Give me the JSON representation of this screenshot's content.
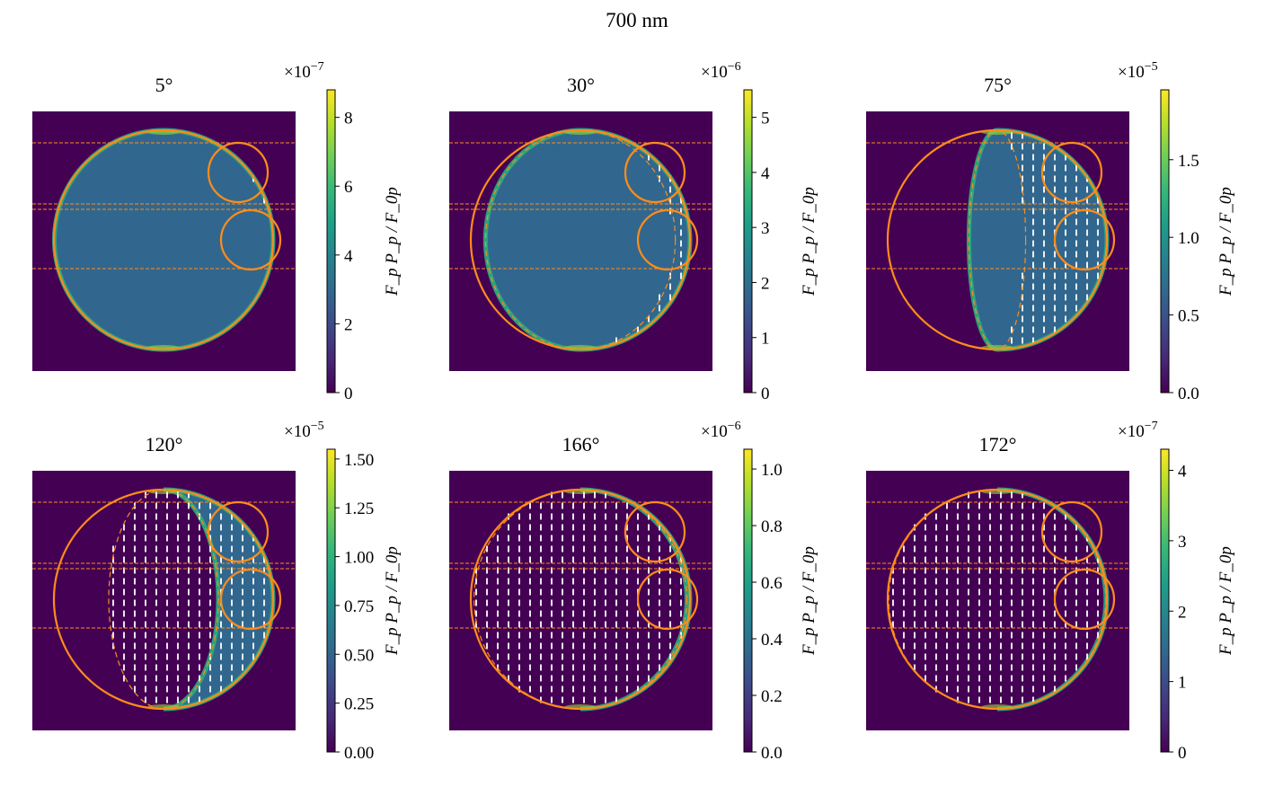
{
  "figure": {
    "suptitle": "700 nm"
  },
  "colors": {
    "planet_edge": "#ff8c1a",
    "vector": "#ffffff",
    "background": "#440154",
    "cmap": [
      "#440154",
      "#482878",
      "#3e4989",
      "#31688e",
      "#26828e",
      "#1f9e89",
      "#35b779",
      "#6ece58",
      "#b5de2b",
      "#fde725"
    ]
  },
  "colorbar_label": "F_p P_p / F_0p",
  "chart_data": [
    {
      "type": "heatmap",
      "title": "5°",
      "phase_angle_deg": 5,
      "colorbar": {
        "multiplier": "×10^−7",
        "multiplier_base": "×10",
        "multiplier_exp": "−7",
        "vmin": 0,
        "vmax": 8.8,
        "ticks": [
          0,
          2,
          4,
          6,
          8
        ],
        "tick_labels": [
          "0",
          "2",
          "4",
          "6",
          "8"
        ]
      }
    },
    {
      "type": "heatmap",
      "title": "30°",
      "phase_angle_deg": 30,
      "colorbar": {
        "multiplier": "×10^−6",
        "multiplier_base": "×10",
        "multiplier_exp": "−6",
        "vmin": 0,
        "vmax": 5.5,
        "ticks": [
          0,
          1,
          2,
          3,
          4,
          5
        ],
        "tick_labels": [
          "0",
          "1",
          "2",
          "3",
          "4",
          "5"
        ]
      }
    },
    {
      "type": "heatmap",
      "title": "75°",
      "phase_angle_deg": 75,
      "colorbar": {
        "multiplier": "×10^−5",
        "multiplier_base": "×10",
        "multiplier_exp": "−5",
        "vmin": 0,
        "vmax": 1.95,
        "ticks": [
          0,
          0.5,
          1.0,
          1.5
        ],
        "tick_labels": [
          "0.0",
          "0.5",
          "1.0",
          "1.5"
        ]
      }
    },
    {
      "type": "heatmap",
      "title": "120°",
      "phase_angle_deg": 120,
      "colorbar": {
        "multiplier": "×10^−5",
        "multiplier_base": "×10",
        "multiplier_exp": "−5",
        "vmin": 0,
        "vmax": 1.55,
        "ticks": [
          0,
          0.25,
          0.5,
          0.75,
          1.0,
          1.25,
          1.5
        ],
        "tick_labels": [
          "0.00",
          "0.25",
          "0.50",
          "0.75",
          "1.00",
          "1.25",
          "1.50"
        ]
      }
    },
    {
      "type": "heatmap",
      "title": "166°",
      "phase_angle_deg": 166,
      "colorbar": {
        "multiplier": "×10^−6",
        "multiplier_base": "×10",
        "multiplier_exp": "−6",
        "vmin": 0,
        "vmax": 1.07,
        "ticks": [
          0,
          0.2,
          0.4,
          0.6,
          0.8,
          1.0
        ],
        "tick_labels": [
          "0.0",
          "0.2",
          "0.4",
          "0.6",
          "0.8",
          "1.0"
        ]
      }
    },
    {
      "type": "heatmap",
      "title": "172°",
      "phase_angle_deg": 172,
      "colorbar": {
        "multiplier": "×10^−7",
        "multiplier_base": "×10",
        "multiplier_exp": "−7",
        "vmin": 0,
        "vmax": 4.3,
        "ticks": [
          0,
          1,
          2,
          3,
          4
        ],
        "tick_labels": [
          "0",
          "1",
          "2",
          "3",
          "4"
        ]
      }
    }
  ]
}
